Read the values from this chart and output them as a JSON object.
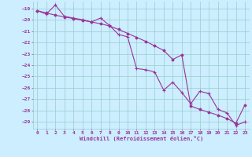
{
  "xlabel": "Windchill (Refroidissement éolien,°C)",
  "bg_color": "#cceeff",
  "grid_color": "#99cccc",
  "line_color": "#993399",
  "xlim": [
    -0.5,
    23.5
  ],
  "ylim": [
    -29.6,
    -18.4
  ],
  "yticks": [
    -19,
    -20,
    -21,
    -22,
    -23,
    -24,
    -25,
    -26,
    -27,
    -28,
    -29
  ],
  "xticks": [
    0,
    1,
    2,
    3,
    4,
    5,
    6,
    7,
    8,
    9,
    10,
    11,
    12,
    13,
    14,
    15,
    16,
    17,
    18,
    19,
    20,
    21,
    22,
    23
  ],
  "data_x": [
    0,
    1,
    2,
    3,
    4,
    5,
    6,
    7,
    8,
    9,
    10,
    11,
    12,
    13,
    14,
    15,
    16,
    17,
    18,
    19,
    20,
    21,
    22,
    23
  ],
  "data_y": [
    -19.2,
    -19.5,
    -18.7,
    -19.7,
    -19.85,
    -20.0,
    -20.2,
    -19.85,
    -20.5,
    -21.3,
    -21.5,
    -24.3,
    -24.4,
    -24.6,
    -26.2,
    -25.5,
    -26.4,
    -27.4,
    -26.3,
    -26.5,
    -27.9,
    -28.2,
    -29.3,
    -29.0
  ],
  "trend_x": [
    0,
    1,
    2,
    3,
    4,
    5,
    6,
    7,
    8,
    9,
    10,
    11,
    12,
    13,
    14,
    15,
    16,
    17,
    18,
    19,
    20,
    21,
    22,
    23
  ],
  "trend_y": [
    -19.2,
    -19.4,
    -19.6,
    -19.75,
    -19.9,
    -20.05,
    -20.2,
    -20.35,
    -20.55,
    -20.85,
    -21.2,
    -21.55,
    -21.9,
    -22.3,
    -22.7,
    -23.5,
    -23.1,
    -27.6,
    -27.9,
    -28.15,
    -28.4,
    -28.7,
    -29.1,
    -27.5
  ]
}
